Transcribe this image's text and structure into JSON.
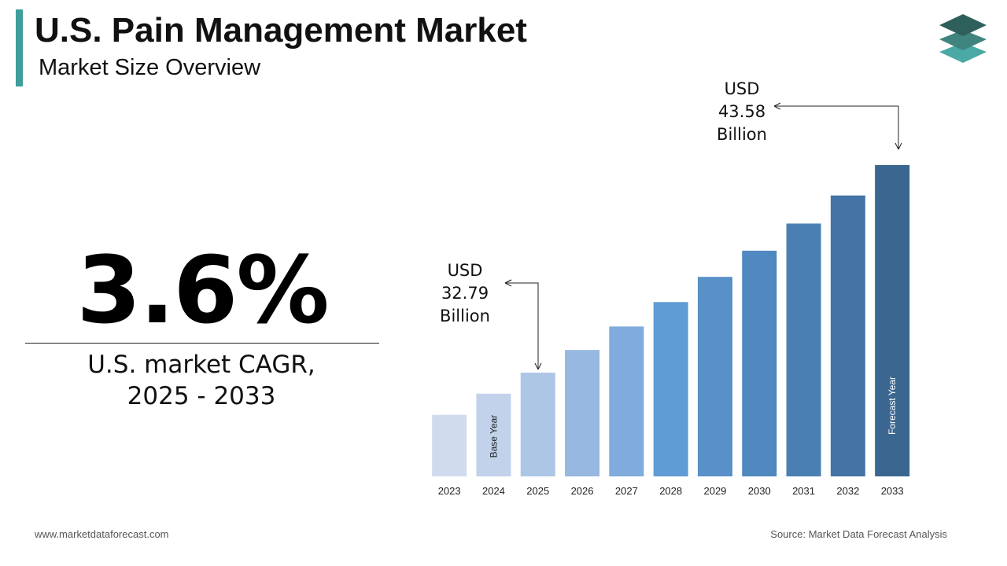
{
  "header": {
    "title": "U.S. Pain Management Market",
    "subtitle": "Market Size Overview"
  },
  "highlight": {
    "value": "3.6%",
    "caption": "U.S. market CAGR, 2025 - 2033"
  },
  "footer": {
    "website": "www.marketdataforecast.com",
    "source": "Source: Market Data Forecast Analysis"
  },
  "chart_data": {
    "type": "bar",
    "categories": [
      "2023",
      "2024",
      "2025",
      "2026",
      "2027",
      "2028",
      "2029",
      "2030",
      "2031",
      "2032",
      "2033"
    ],
    "values": [
      30.6,
      31.7,
      32.79,
      33.97,
      35.19,
      36.46,
      37.77,
      39.13,
      40.54,
      42.0,
      43.58
    ],
    "value_labels": [
      null,
      null,
      "USD 32.79 Billion",
      null,
      null,
      null,
      null,
      null,
      null,
      null,
      "USD 43.58 Billion"
    ],
    "bar_notes": [
      null,
      "Base Year",
      null,
      null,
      null,
      null,
      null,
      null,
      null,
      null,
      "Forecast Year"
    ],
    "colors": [
      "#d0dcee",
      "#c1d2ea",
      "#adc6e6",
      "#97b8e0",
      "#7fabdd",
      "#5f9bd5",
      "#5890c8",
      "#5088c0",
      "#4a7fb4",
      "#4474a6",
      "#3b6690"
    ],
    "ylim": [
      27.4,
      43.58
    ]
  }
}
